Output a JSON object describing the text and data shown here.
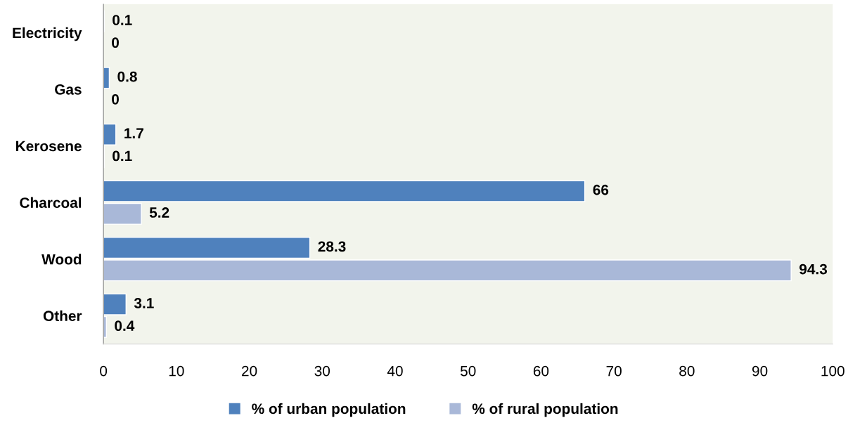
{
  "chart_data": {
    "type": "bar",
    "orientation": "horizontal",
    "categories": [
      "Electricity",
      "Gas",
      "Kerosene",
      "Charcoal",
      "Wood",
      "Other"
    ],
    "series": [
      {
        "name": "% of urban population",
        "color": "#4f81bd",
        "values": [
          0.1,
          0.8,
          1.7,
          66,
          28.3,
          3.1
        ]
      },
      {
        "name": "% of rural population",
        "color": "#a9b8d8",
        "values": [
          0,
          0,
          0.1,
          5.2,
          94.3,
          0.4
        ]
      }
    ],
    "xlim": [
      0,
      100
    ],
    "xticks": [
      0,
      10,
      20,
      30,
      40,
      50,
      60,
      70,
      80,
      90,
      100
    ],
    "data_labels": true,
    "legend": "bottom"
  }
}
